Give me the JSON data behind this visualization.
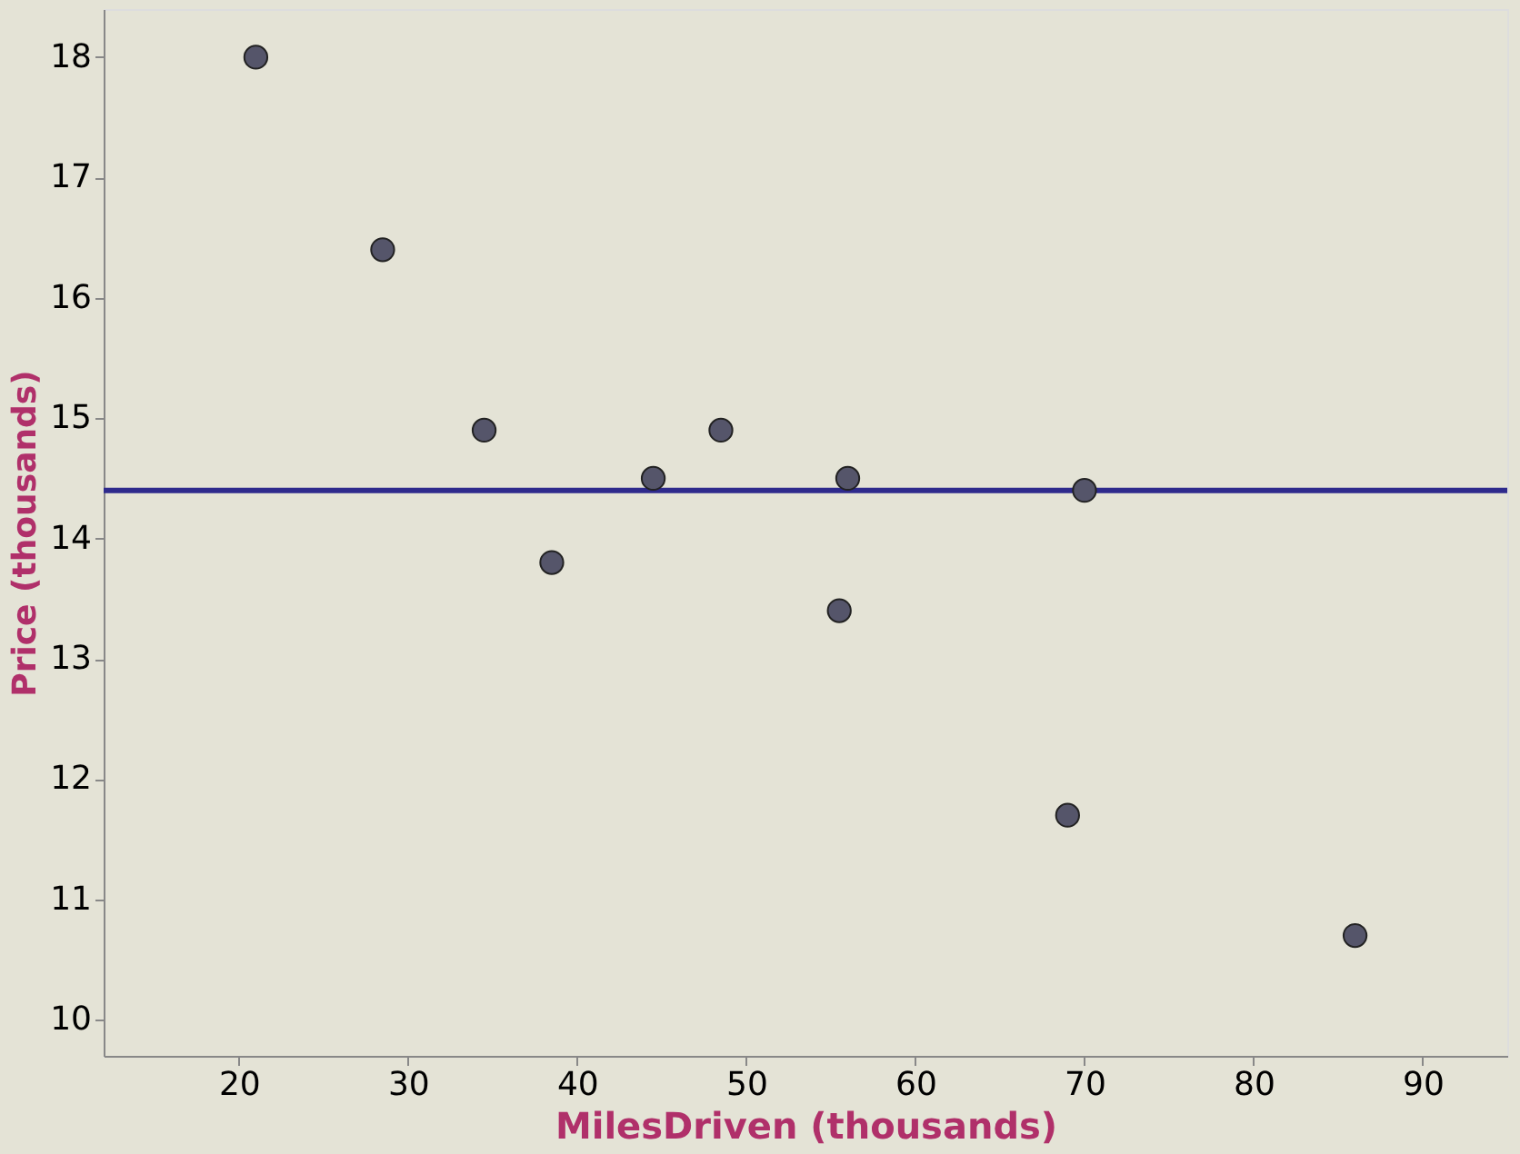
{
  "chart_data": {
    "type": "scatter",
    "xlabel": "MilesDriven (thousands)",
    "ylabel": "Price (thousands)",
    "series": [
      {
        "color": "#55556a",
        "x": [
          21,
          28.5,
          34.5,
          38.5,
          44.5,
          48.5,
          55.5,
          56,
          69,
          70,
          86
        ],
        "values": [
          18,
          16.4,
          14.9,
          13.8,
          14.5,
          14.9,
          13.4,
          14.5,
          11.7,
          14.4,
          10.7
        ]
      }
    ],
    "xlim": [
      12,
      95
    ],
    "xticks": [
      20,
      30,
      40,
      50,
      60,
      70,
      80,
      90
    ],
    "ylim": [
      9.7,
      18.4
    ],
    "yticks": [
      10,
      11,
      12,
      13,
      14,
      15,
      16,
      17,
      18
    ],
    "ref_lines": [
      {
        "axis": "y",
        "value": 14.4,
        "color": "#2e2a8c"
      }
    ],
    "grid": false,
    "marker": "circle"
  }
}
